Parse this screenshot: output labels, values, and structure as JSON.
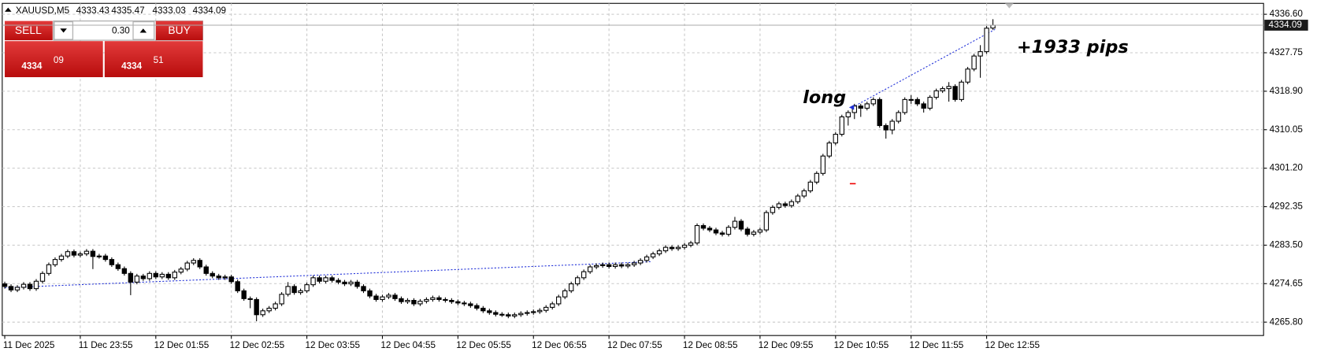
{
  "header": {
    "symbol": "XAUUSD,M5"
  },
  "panel": {
    "sell": "SELL",
    "buy": "BUY",
    "lot": "0.30",
    "sell_main": "4334",
    "sell_pips": "09",
    "buy_main": "4334",
    "buy_pips": "51"
  },
  "chart_data": {
    "type": "candlestick",
    "annotations": [
      "long",
      "+1933 pips"
    ],
    "categories": [
      "11 Dec 2025",
      null,
      null,
      null,
      null,
      null,
      null,
      null,
      null,
      null,
      null,
      null,
      "11 Dec 23:55",
      null,
      null,
      null,
      null,
      null,
      null,
      null,
      null,
      null,
      null,
      null,
      "12 Dec 01:55",
      null,
      null,
      null,
      null,
      null,
      null,
      null,
      null,
      null,
      null,
      null,
      "12 Dec 02:55",
      null,
      null,
      null,
      null,
      null,
      null,
      null,
      null,
      null,
      null,
      null,
      "12 Dec 03:55",
      null,
      null,
      null,
      null,
      null,
      null,
      null,
      null,
      null,
      null,
      null,
      "12 Dec 04:55",
      null,
      null,
      null,
      null,
      null,
      null,
      null,
      null,
      null,
      null,
      null,
      "12 Dec 05:55",
      null,
      null,
      null,
      null,
      null,
      null,
      null,
      null,
      null,
      null,
      null,
      "12 Dec 06:55",
      null,
      null,
      null,
      null,
      null,
      null,
      null,
      null,
      null,
      null,
      null,
      "12 Dec 07:55",
      null,
      null,
      null,
      null,
      null,
      null,
      null,
      null,
      null,
      null,
      null,
      "12 Dec 08:55",
      null,
      null,
      null,
      null,
      null,
      null,
      null,
      null,
      null,
      null,
      null,
      "12 Dec 09:55",
      null,
      null,
      null,
      null,
      null,
      null,
      null,
      null,
      null,
      null,
      null,
      "12 Dec 10:55",
      null,
      null,
      null,
      null,
      null,
      null,
      null,
      null,
      null,
      null,
      null,
      "12 Dec 11:55",
      null,
      null,
      null,
      null,
      null,
      null,
      null,
      null,
      null,
      null,
      null,
      "12 Dec 12:55",
      null
    ],
    "candles": [
      [
        4274.6,
        4275.1,
        4273.5,
        4274.0
      ],
      [
        4274.0,
        4274.5,
        4272.7,
        4273.2
      ],
      [
        4273.2,
        4274.3,
        4272.7,
        4273.8
      ],
      [
        4273.8,
        4275.0,
        4273.3,
        4274.5
      ],
      [
        4274.5,
        4275.0,
        4273.0,
        4273.5
      ],
      [
        4273.5,
        4275.7,
        4273.0,
        4275.2
      ],
      [
        4275.2,
        4277.5,
        4274.7,
        4277.0
      ],
      [
        4277.0,
        4279.5,
        4276.5,
        4279.0
      ],
      [
        4279.0,
        4280.7,
        4278.5,
        4280.2
      ],
      [
        4280.2,
        4281.5,
        4279.7,
        4281.0
      ],
      [
        4281.0,
        4282.5,
        4280.5,
        4282.0
      ],
      [
        4282.0,
        4282.5,
        4280.7,
        4281.2
      ],
      [
        4281.2,
        4282.0,
        4280.7,
        4281.5
      ],
      [
        4281.5,
        4282.6,
        4281.0,
        4282.1
      ],
      [
        4282.1,
        4282.6,
        4278.0,
        4280.9
      ],
      [
        4280.9,
        4281.5,
        4280.4,
        4281.0
      ],
      [
        4281.0,
        4281.5,
        4279.7,
        4280.2
      ],
      [
        4280.2,
        4280.7,
        4278.5,
        4279.0
      ],
      [
        4279.0,
        4279.5,
        4277.6,
        4278.1
      ],
      [
        4278.1,
        4278.6,
        4276.5,
        4277.0
      ],
      [
        4277.0,
        4277.5,
        4272.0,
        4275.0
      ],
      [
        4275.0,
        4276.9,
        4274.5,
        4276.4
      ],
      [
        4276.4,
        4276.9,
        4275.3,
        4275.8
      ],
      [
        4275.8,
        4277.5,
        4275.3,
        4277.0
      ],
      [
        4277.0,
        4277.5,
        4275.7,
        4276.2
      ],
      [
        4276.2,
        4277.3,
        4275.7,
        4276.8
      ],
      [
        4276.8,
        4277.3,
        4275.5,
        4276.0
      ],
      [
        4276.0,
        4277.8,
        4275.5,
        4277.3
      ],
      [
        4277.3,
        4278.5,
        4276.8,
        4278.0
      ],
      [
        4278.0,
        4279.9,
        4277.5,
        4279.4
      ],
      [
        4279.4,
        4280.5,
        4278.9,
        4280.0
      ],
      [
        4280.0,
        4280.5,
        4278.0,
        4278.5
      ],
      [
        4278.5,
        4279.0,
        4276.5,
        4277.0
      ],
      [
        4277.0,
        4277.5,
        4275.9,
        4276.4
      ],
      [
        4276.4,
        4276.9,
        4275.5,
        4276.0
      ],
      [
        4276.0,
        4276.7,
        4275.5,
        4276.2
      ],
      [
        4276.2,
        4276.7,
        4274.6,
        4275.1
      ],
      [
        4275.1,
        4275.6,
        4272.5,
        4273.0
      ],
      [
        4273.0,
        4273.5,
        4270.7,
        4271.2
      ],
      [
        4271.2,
        4271.7,
        4269.0,
        4271.0
      ],
      [
        4271.0,
        4271.5,
        4266.0,
        4267.5
      ],
      [
        4267.5,
        4268.9,
        4267.0,
        4268.4
      ],
      [
        4268.4,
        4269.5,
        4267.9,
        4269.0
      ],
      [
        4269.0,
        4270.5,
        4268.5,
        4270.0
      ],
      [
        4270.0,
        4272.7,
        4269.5,
        4272.2
      ],
      [
        4272.2,
        4275.0,
        4271.7,
        4274.0
      ],
      [
        4274.0,
        4274.5,
        4272.1,
        4272.6
      ],
      [
        4272.6,
        4273.5,
        4272.1,
        4273.0
      ],
      [
        4273.0,
        4274.9,
        4272.5,
        4274.4
      ],
      [
        4274.4,
        4276.5,
        4273.9,
        4276.0
      ],
      [
        4276.0,
        4276.5,
        4274.7,
        4275.2
      ],
      [
        4275.2,
        4276.5,
        4274.7,
        4276.0
      ],
      [
        4276.0,
        4276.5,
        4274.9,
        4275.4
      ],
      [
        4275.4,
        4275.9,
        4274.5,
        4275.0
      ],
      [
        4275.0,
        4275.5,
        4274.1,
        4274.6
      ],
      [
        4274.6,
        4275.5,
        4274.1,
        4275.0
      ],
      [
        4275.0,
        4275.5,
        4273.5,
        4274.0
      ],
      [
        4274.0,
        4274.5,
        4272.5,
        4273.0
      ],
      [
        4273.0,
        4273.5,
        4271.3,
        4271.8
      ],
      [
        4271.8,
        4272.3,
        4270.5,
        4271.0
      ],
      [
        4271.0,
        4272.1,
        4270.5,
        4271.6
      ],
      [
        4271.6,
        4272.5,
        4271.1,
        4272.0
      ],
      [
        4272.0,
        4272.5,
        4270.7,
        4271.2
      ],
      [
        4271.2,
        4271.7,
        4270.0,
        4270.5
      ],
      [
        4270.5,
        4271.3,
        4270.0,
        4270.8
      ],
      [
        4270.8,
        4271.3,
        4269.5,
        4270.0
      ],
      [
        4270.0,
        4271.1,
        4269.5,
        4270.6
      ],
      [
        4270.6,
        4271.5,
        4270.1,
        4271.0
      ],
      [
        4271.0,
        4271.9,
        4270.5,
        4271.4
      ],
      [
        4271.4,
        4271.9,
        4270.5,
        4271.0
      ],
      [
        4271.0,
        4271.5,
        4270.3,
        4270.8
      ],
      [
        4270.8,
        4271.3,
        4270.0,
        4270.5
      ],
      [
        4270.5,
        4271.0,
        4269.7,
        4270.2
      ],
      [
        4270.2,
        4270.7,
        4269.5,
        4270.0
      ],
      [
        4270.0,
        4270.5,
        4269.1,
        4269.6
      ],
      [
        4269.6,
        4270.1,
        4268.5,
        4269.0
      ],
      [
        4269.0,
        4269.5,
        4267.9,
        4268.4
      ],
      [
        4268.4,
        4268.9,
        4267.5,
        4268.0
      ],
      [
        4268.0,
        4268.5,
        4267.1,
        4267.6
      ],
      [
        4267.6,
        4268.1,
        4267.0,
        4267.5
      ],
      [
        4267.5,
        4268.0,
        4266.7,
        4267.2
      ],
      [
        4267.2,
        4268.0,
        4266.7,
        4267.5
      ],
      [
        4267.5,
        4268.3,
        4267.0,
        4267.8
      ],
      [
        4267.8,
        4268.5,
        4267.3,
        4268.0
      ],
      [
        4268.0,
        4268.7,
        4267.5,
        4268.2
      ],
      [
        4268.2,
        4269.0,
        4267.7,
        4268.5
      ],
      [
        4268.5,
        4269.7,
        4268.0,
        4269.2
      ],
      [
        4269.2,
        4270.5,
        4268.7,
        4270.0
      ],
      [
        4270.0,
        4272.1,
        4269.5,
        4271.6
      ],
      [
        4271.6,
        4273.5,
        4271.1,
        4273.0
      ],
      [
        4273.0,
        4275.1,
        4272.5,
        4274.6
      ],
      [
        4274.6,
        4276.5,
        4274.1,
        4276.0
      ],
      [
        4276.0,
        4277.9,
        4275.5,
        4277.4
      ],
      [
        4277.4,
        4279.0,
        4276.9,
        4278.5
      ],
      [
        4278.5,
        4279.3,
        4278.0,
        4278.8
      ],
      [
        4278.8,
        4279.5,
        4278.3,
        4279.0
      ],
      [
        4279.0,
        4279.5,
        4278.1,
        4278.6
      ],
      [
        4278.6,
        4279.5,
        4278.1,
        4279.0
      ],
      [
        4279.0,
        4279.5,
        4278.2,
        4278.7
      ],
      [
        4278.7,
        4279.5,
        4278.2,
        4279.0
      ],
      [
        4279.0,
        4279.9,
        4278.5,
        4279.4
      ],
      [
        4279.4,
        4280.5,
        4278.9,
        4280.0
      ],
      [
        4280.0,
        4281.3,
        4279.5,
        4280.8
      ],
      [
        4280.8,
        4282.0,
        4280.3,
        4281.5
      ],
      [
        4281.5,
        4282.7,
        4281.0,
        4282.2
      ],
      [
        4282.2,
        4283.5,
        4281.7,
        4283.0
      ],
      [
        4283.0,
        4283.5,
        4282.2,
        4282.7
      ],
      [
        4282.7,
        4283.5,
        4282.2,
        4283.0
      ],
      [
        4283.0,
        4284.0,
        4282.5,
        4283.5
      ],
      [
        4283.5,
        4284.5,
        4283.0,
        4284.0
      ],
      [
        4284.0,
        4288.5,
        4283.5,
        4288.0
      ],
      [
        4288.0,
        4288.5,
        4286.9,
        4287.4
      ],
      [
        4287.4,
        4287.9,
        4286.5,
        4287.0
      ],
      [
        4287.0,
        4287.5,
        4285.8,
        4286.3
      ],
      [
        4286.3,
        4286.8,
        4285.5,
        4286.0
      ],
      [
        4286.0,
        4288.1,
        4285.5,
        4287.6
      ],
      [
        4287.6,
        4290.0,
        4287.1,
        4289.0
      ],
      [
        4289.0,
        4289.5,
        4286.7,
        4287.2
      ],
      [
        4287.2,
        4287.7,
        4285.5,
        4286.0
      ],
      [
        4286.0,
        4287.0,
        4285.5,
        4286.5
      ],
      [
        4286.5,
        4287.5,
        4286.0,
        4287.0
      ],
      [
        4287.0,
        4291.5,
        4286.5,
        4291.0
      ],
      [
        4291.0,
        4292.7,
        4290.5,
        4292.2
      ],
      [
        4292.2,
        4293.5,
        4291.7,
        4293.0
      ],
      [
        4293.0,
        4293.5,
        4292.1,
        4292.6
      ],
      [
        4292.6,
        4294.0,
        4292.1,
        4293.5
      ],
      [
        4293.5,
        4295.3,
        4293.0,
        4294.8
      ],
      [
        4294.8,
        4296.5,
        4294.3,
        4296.0
      ],
      [
        4296.0,
        4298.5,
        4295.5,
        4298.0
      ],
      [
        4298.0,
        4300.5,
        4297.5,
        4300.0
      ],
      [
        4300.0,
        4304.5,
        4299.5,
        4304.0
      ],
      [
        4304.0,
        4307.5,
        4303.5,
        4307.0
      ],
      [
        4307.0,
        4309.5,
        4306.5,
        4309.0
      ],
      [
        4309.0,
        4313.5,
        4308.5,
        4313.0
      ],
      [
        4313.0,
        4314.5,
        4311.0,
        4314.0
      ],
      [
        4314.0,
        4316.0,
        4312.5,
        4315.5
      ],
      [
        4315.5,
        4316.0,
        4313.0,
        4315.0
      ],
      [
        4315.0,
        4316.5,
        4314.5,
        4316.0
      ],
      [
        4316.0,
        4317.5,
        4315.5,
        4317.0
      ],
      [
        4317.0,
        4317.5,
        4310.5,
        4311.0
      ],
      [
        4311.0,
        4311.5,
        4308.0,
        4310.0
      ],
      [
        4310.0,
        4312.5,
        4309.0,
        4312.0
      ],
      [
        4312.0,
        4314.5,
        4311.5,
        4314.0
      ],
      [
        4314.0,
        4317.5,
        4313.5,
        4317.0
      ],
      [
        4317.0,
        4318.0,
        4316.0,
        4317.0
      ],
      [
        4317.0,
        4317.5,
        4315.5,
        4316.0
      ],
      [
        4316.0,
        4316.5,
        4314.0,
        4315.0
      ],
      [
        4315.0,
        4318.0,
        4314.5,
        4317.5
      ],
      [
        4317.5,
        4319.5,
        4317.0,
        4319.0
      ],
      [
        4319.0,
        4320.0,
        4318.5,
        4319.5
      ],
      [
        4319.5,
        4321.0,
        4316.5,
        4320.0
      ],
      [
        4320.0,
        4320.5,
        4316.5,
        4317.0
      ],
      [
        4317.0,
        4321.5,
        4316.5,
        4321.0
      ],
      [
        4321.0,
        4324.5,
        4320.5,
        4324.0
      ],
      [
        4324.0,
        4327.5,
        4323.5,
        4327.0
      ],
      [
        4327.0,
        4329.5,
        4322.0,
        4328.0
      ],
      [
        4328.0,
        4333.9,
        4327.5,
        4333.4
      ],
      [
        4333.43,
        4335.47,
        4333.03,
        4334.09
      ]
    ],
    "ylim": [
      4262.72,
      4339.11
    ],
    "yticks": [
      {
        "value": 4336.6,
        "label": "4336.60"
      },
      4327.75,
      {
        "value": 4318.9,
        "label": "4318.90"
      },
      4310.05,
      {
        "value": 4301.2,
        "label": "4301.20"
      },
      4292.35,
      {
        "value": 4283.5,
        "label": "4283.50"
      },
      4274.65,
      {
        "value": 4265.8,
        "label": "4265.80"
      }
    ],
    "grid": true,
    "up_color": "#ffffff",
    "down_color": "#000000"
  }
}
